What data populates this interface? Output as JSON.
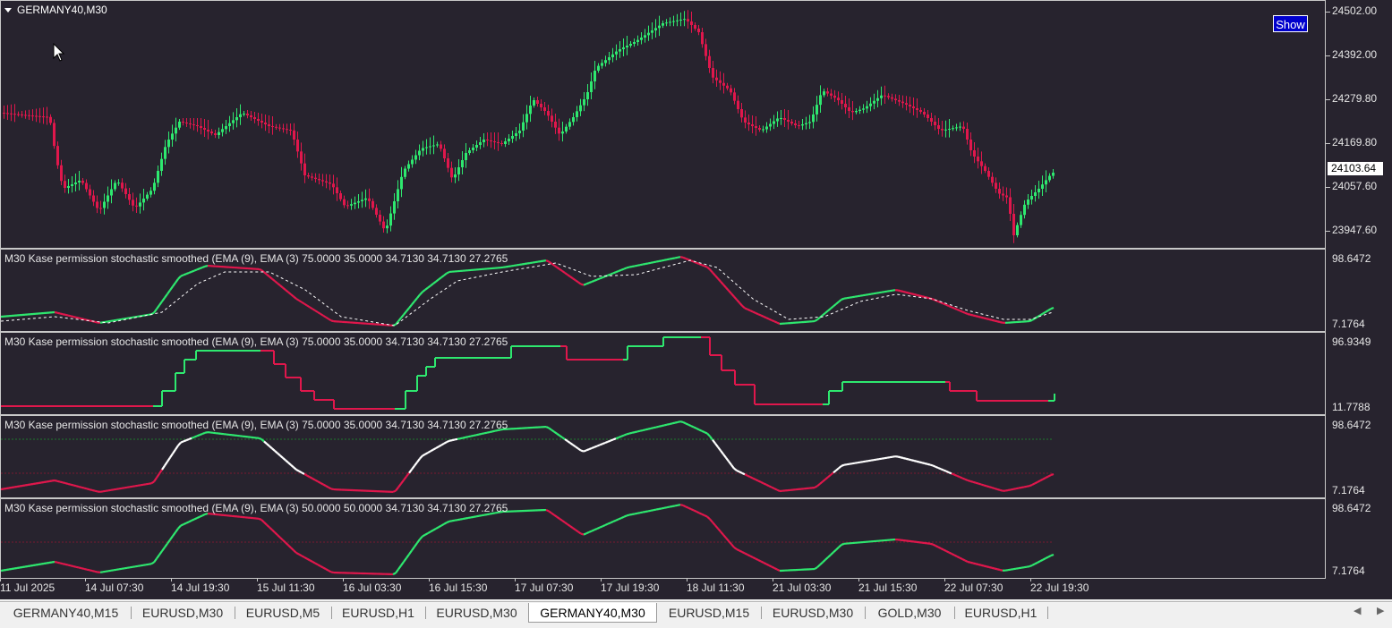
{
  "symbol_title": "GERMANY40,M30",
  "show_button": "Show",
  "current_price": "24103.64",
  "price_axis": [
    "24502.00",
    "24392.00",
    "24279.80",
    "24169.80",
    "24057.60",
    "23947.60"
  ],
  "indicators": [
    {
      "title": "M30 Kase permission stochastic smoothed (EMA (9), EMA (3) 75.0000 35.0000 34.7130 34.7130 27.2765",
      "axis_max": "98.6472",
      "axis_min": "7.1764"
    },
    {
      "title": "M30 Kase permission stochastic smoothed (EMA (9), EMA (3) 75.0000 35.0000 34.7130 34.7130 27.2765",
      "axis_max": "96.9349",
      "axis_min": "11.7788"
    },
    {
      "title": "M30 Kase permission stochastic smoothed (EMA (9), EMA (3) 75.0000 35.0000 34.7130 34.7130 27.2765",
      "axis_max": "98.6472",
      "axis_min": "7.1764"
    },
    {
      "title": "M30 Kase permission stochastic smoothed (EMA (9), EMA (3) 50.0000 50.0000 34.7130 34.7130 27.2765",
      "axis_max": "98.6472",
      "axis_min": "7.1764"
    }
  ],
  "time_axis": [
    "11 Jul 2025",
    "14 Jul 07:30",
    "14 Jul 19:30",
    "15 Jul 11:30",
    "16 Jul 03:30",
    "16 Jul 15:30",
    "17 Jul 07:30",
    "17 Jul 19:30",
    "18 Jul 11:30",
    "21 Jul 03:30",
    "21 Jul 15:30",
    "22 Jul 07:30",
    "22 Jul 19:30"
  ],
  "tabs": [
    "GERMANY40,M15",
    "EURUSD,M30",
    "EURUSD,M5",
    "EURUSD,H1",
    "EURUSD,M30",
    "GERMANY40,M30",
    "EURUSD,M15",
    "EURUSD,M30",
    "GOLD,M30",
    "EURUSD,H1"
  ],
  "active_tab_index": 5,
  "colors": {
    "background": "#27232e",
    "bull": "#2ee86f",
    "bear": "#e0174c",
    "neutral": "#ffffff"
  }
}
